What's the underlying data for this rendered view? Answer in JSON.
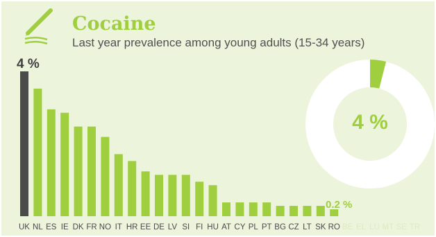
{
  "header": {
    "title": "Cocaine",
    "subtitle": "Last year prevalence among young adults (15-34 years)",
    "icon": "pencil-icon"
  },
  "highlights": {
    "max_label": "4 %",
    "min_label": "0.2 %",
    "donut_label": "4 %"
  },
  "colors": {
    "accent": "#9fce3f",
    "highlight_bar": "#4b4b4b",
    "background": "#edf4dc",
    "no_data_label": "#dfe9c3"
  },
  "chart_data": [
    {
      "type": "bar",
      "title": "Cocaine",
      "subtitle": "Last year prevalence among young adults (15-34 years)",
      "categories": [
        "UK",
        "NL",
        "ES",
        "IE",
        "DK",
        "FR",
        "NO",
        "IT",
        "HR",
        "EE",
        "DE",
        "LV",
        "SI",
        "FI",
        "HU",
        "AT",
        "CY",
        "PL",
        "PT",
        "BG",
        "CZ",
        "LT",
        "SK",
        "RO",
        "BE",
        "EL",
        "LU",
        "MT",
        "SE",
        "TR"
      ],
      "values": [
        4.2,
        3.7,
        3.1,
        3.0,
        2.6,
        2.6,
        2.3,
        1.8,
        1.6,
        1.3,
        1.2,
        1.2,
        1.2,
        1.0,
        0.9,
        0.4,
        0.4,
        0.4,
        0.4,
        0.3,
        0.3,
        0.3,
        0.3,
        0.2,
        null,
        null,
        null,
        null,
        null,
        null
      ],
      "highlight": "UK",
      "no_data": [
        "BE",
        "EL",
        "LU",
        "MT",
        "SE",
        "TR"
      ],
      "ylim": [
        0,
        4.2
      ],
      "grid": false
    },
    {
      "type": "pie",
      "style": "donut",
      "values": [
        4,
        96
      ],
      "label": "4 %"
    }
  ]
}
